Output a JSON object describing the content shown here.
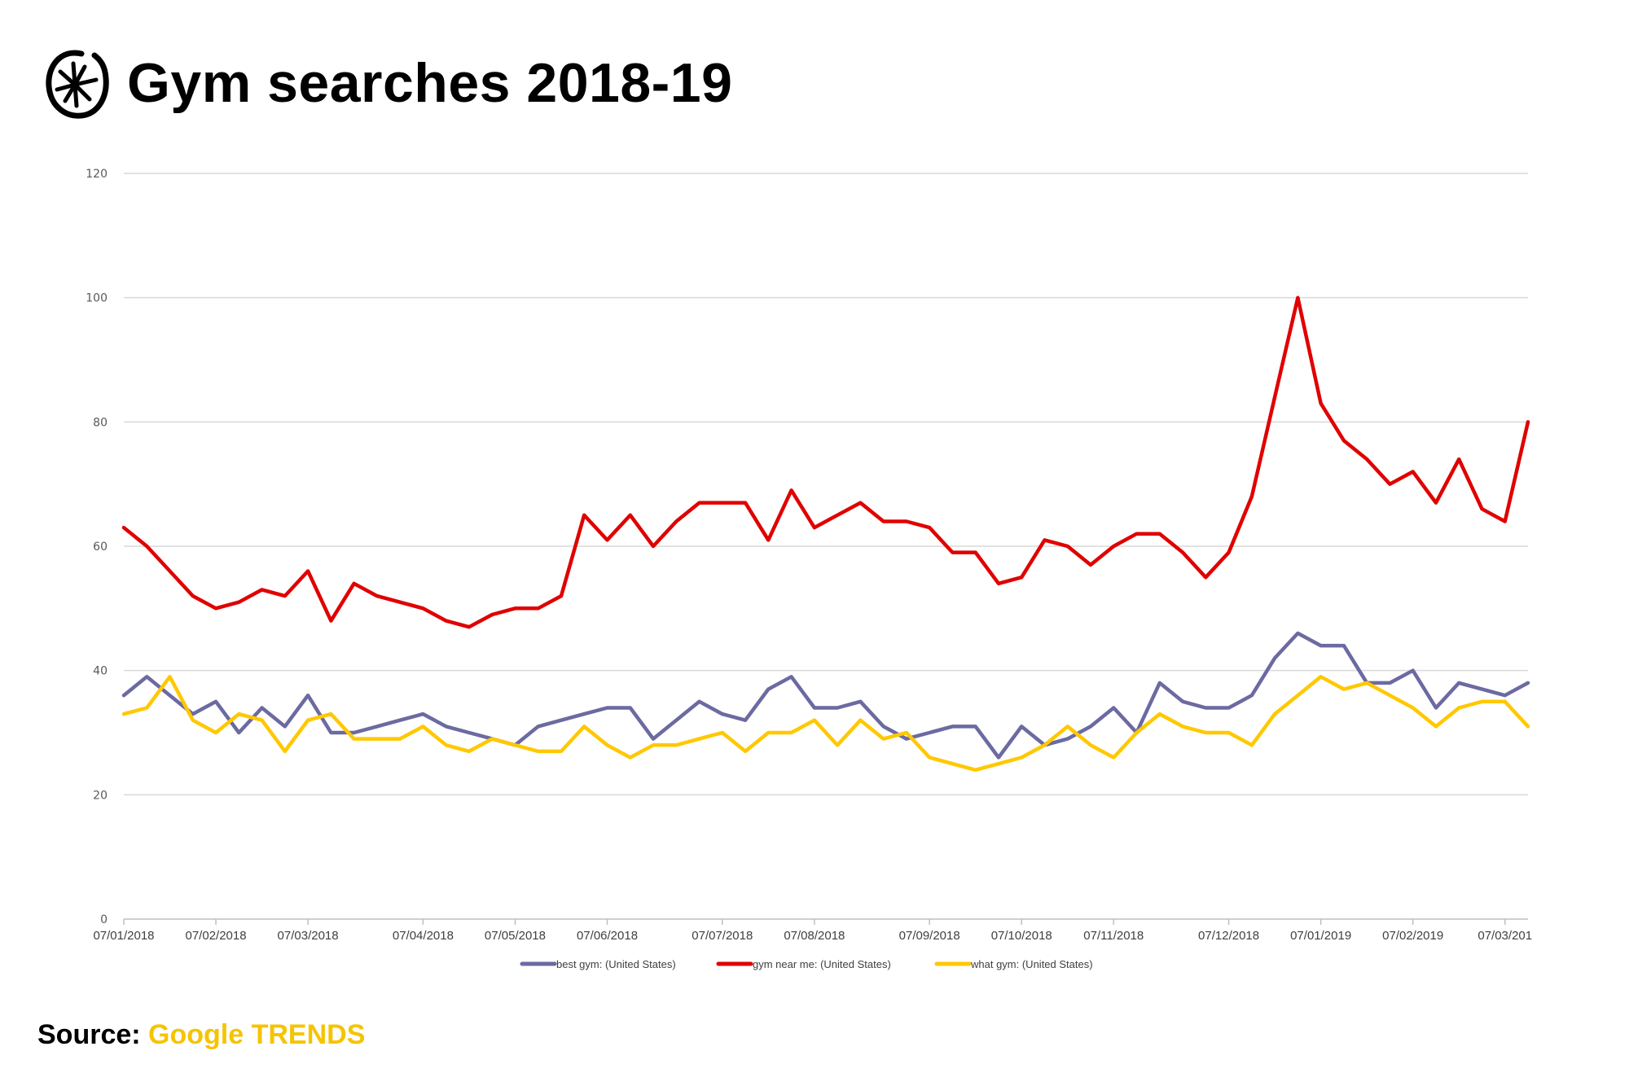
{
  "header": {
    "title": "Gym searches 2018-19",
    "logo_icon": "asterisk-circle-logo"
  },
  "source": {
    "label": "Source:",
    "value": "Google TRENDS",
    "value_color": "#f5c400"
  },
  "chart_data": {
    "type": "line",
    "title": "Gym searches 2018-19",
    "xlabel": "",
    "ylabel": "",
    "ylim": [
      0,
      120
    ],
    "yticks": [
      "0",
      "20",
      "40",
      "60",
      "80",
      "100",
      "120"
    ],
    "xtick_labels": [
      "07/01/2018",
      "07/02/2018",
      "07/03/2018",
      "07/04/2018",
      "07/05/2018",
      "07/06/2018",
      "07/07/2018",
      "07/08/2018",
      "07/09/2018",
      "07/10/2018",
      "07/11/2018",
      "07/12/2018",
      "07/01/2019",
      "07/02/2019",
      "07/03/201"
    ],
    "xtick_week_index": [
      0,
      4,
      8,
      13,
      17,
      21,
      26,
      30,
      35,
      39,
      43,
      48,
      52,
      56,
      60
    ],
    "x_unit": "weekly points",
    "grid": true,
    "legend_position": "bottom",
    "series": [
      {
        "name": "best gym: (United States)",
        "color": "#6b6aa1",
        "values": [
          36,
          39,
          36,
          33,
          35,
          30,
          34,
          31,
          36,
          30,
          30,
          31,
          32,
          33,
          31,
          30,
          29,
          28,
          31,
          32,
          33,
          34,
          34,
          29,
          32,
          35,
          33,
          32,
          37,
          39,
          34,
          34,
          35,
          31,
          29,
          30,
          31,
          31,
          26,
          31,
          28,
          29,
          31,
          34,
          30,
          38,
          35,
          34,
          34,
          36,
          42,
          46,
          44,
          44,
          38,
          38,
          40,
          34,
          38,
          37,
          36,
          38
        ]
      },
      {
        "name": "gym near me: (United States)",
        "color": "#e00000",
        "values": [
          63,
          60,
          56,
          52,
          50,
          51,
          53,
          52,
          56,
          48,
          54,
          52,
          51,
          50,
          48,
          47,
          49,
          50,
          50,
          52,
          65,
          61,
          65,
          60,
          64,
          67,
          67,
          67,
          61,
          69,
          63,
          65,
          67,
          64,
          64,
          63,
          59,
          59,
          54,
          55,
          61,
          60,
          57,
          60,
          62,
          62,
          59,
          55,
          59,
          68,
          84,
          100,
          83,
          77,
          74,
          70,
          72,
          67,
          74,
          66,
          64,
          80
        ]
      },
      {
        "name": "what gym: (United States)",
        "color": "#ffc800",
        "values": [
          33,
          34,
          39,
          32,
          30,
          33,
          32,
          27,
          32,
          33,
          29,
          29,
          29,
          31,
          28,
          27,
          29,
          28,
          27,
          27,
          31,
          28,
          26,
          28,
          28,
          29,
          30,
          27,
          30,
          30,
          32,
          28,
          32,
          29,
          30,
          26,
          25,
          24,
          25,
          26,
          28,
          31,
          28,
          26,
          30,
          33,
          31,
          30,
          30,
          28,
          33,
          36,
          39,
          37,
          38,
          36,
          34,
          31,
          34,
          35,
          35,
          31
        ]
      }
    ]
  }
}
